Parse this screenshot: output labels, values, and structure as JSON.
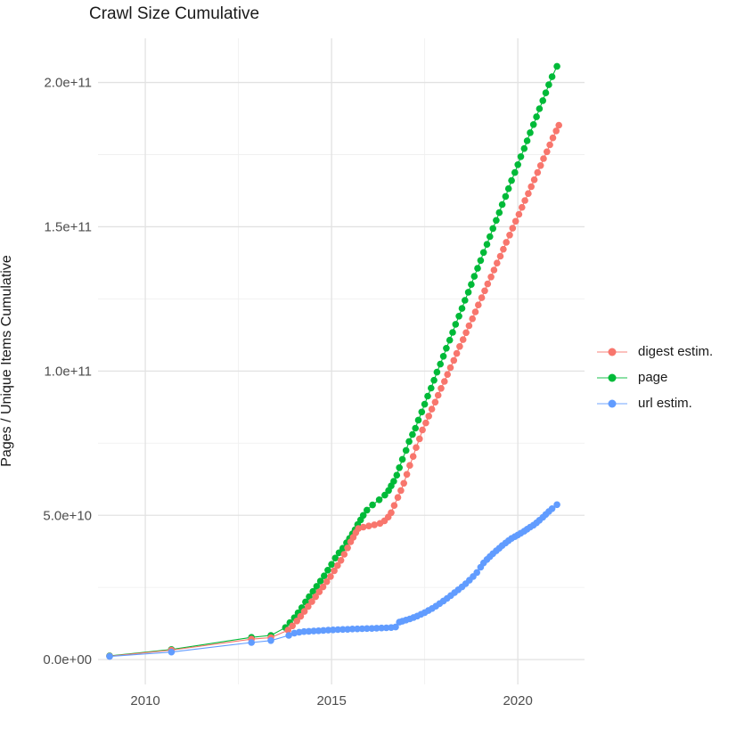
{
  "title": "Crawl Size Cumulative",
  "y_axis_title": "Pages / Unique Items Cumulative",
  "legend": {
    "items": [
      {
        "label": "digest estim.",
        "color": "#F8766D"
      },
      {
        "label": "page",
        "color": "#00BA38"
      },
      {
        "label": "url estim.",
        "color": "#619CFF"
      }
    ]
  },
  "chart_data": {
    "type": "scatter",
    "title": "Crawl Size Cumulative",
    "xlabel": "",
    "ylabel": "Pages / Unique Items Cumulative",
    "x_unit": "year (decimal)",
    "y_unit": "items, stored as value x 1e9",
    "xlim": [
      2008.73,
      2021.79
    ],
    "ylim_e9": [
      -8.6,
      215.3
    ],
    "grid": true,
    "legend_position": "right",
    "x_major_ticks": [
      {
        "label": "2010",
        "value": 2010
      },
      {
        "label": "2015",
        "value": 2015
      },
      {
        "label": "2020",
        "value": 2020
      }
    ],
    "x_minor_ticks": [
      2012.5,
      2017.5
    ],
    "y_major_ticks": [
      {
        "label": "0.0e+00",
        "value_e9": 0
      },
      {
        "label": "5.0e+10",
        "value_e9": 50
      },
      {
        "label": "1.0e+11",
        "value_e9": 100
      },
      {
        "label": "1.5e+11",
        "value_e9": 150
      },
      {
        "label": "2.0e+11",
        "value_e9": 200
      }
    ],
    "y_minor_ticks_e9": [
      25,
      75,
      125,
      175
    ],
    "series": [
      {
        "name": "page",
        "color": "#00BA38",
        "points_year_value_e9": [
          [
            2009.04,
            1.3
          ],
          [
            2010.7,
            3.5
          ],
          [
            2012.85,
            7.7
          ],
          [
            2013.37,
            8.4
          ],
          [
            2013.76,
            11.1
          ],
          [
            2013.88,
            12.8
          ],
          [
            2014.0,
            14.5
          ],
          [
            2014.1,
            16.2
          ],
          [
            2014.2,
            18.0
          ],
          [
            2014.3,
            20.0
          ],
          [
            2014.4,
            21.8
          ],
          [
            2014.5,
            23.6
          ],
          [
            2014.6,
            25.4
          ],
          [
            2014.7,
            27.2
          ],
          [
            2014.8,
            29.0
          ],
          [
            2014.9,
            31.0
          ],
          [
            2015.0,
            33.0
          ],
          [
            2015.1,
            35.2
          ],
          [
            2015.2,
            37.0
          ],
          [
            2015.3,
            38.6
          ],
          [
            2015.4,
            40.5
          ],
          [
            2015.48,
            42.0
          ],
          [
            2015.56,
            43.6
          ],
          [
            2015.63,
            45.0
          ],
          [
            2015.7,
            46.8
          ],
          [
            2015.78,
            48.4
          ],
          [
            2015.85,
            50.0
          ],
          [
            2015.95,
            51.8
          ],
          [
            2016.1,
            53.6
          ],
          [
            2016.28,
            55.4
          ],
          [
            2016.43,
            57.0
          ],
          [
            2016.53,
            58.6
          ],
          [
            2016.6,
            60.2
          ],
          [
            2016.67,
            61.8
          ],
          [
            2016.75,
            63.9
          ],
          [
            2016.82,
            66.5
          ],
          [
            2016.9,
            69.4
          ],
          [
            2017.0,
            72.5
          ],
          [
            2017.08,
            75.6
          ],
          [
            2017.17,
            78.0
          ],
          [
            2017.25,
            80.2
          ],
          [
            2017.33,
            83.0
          ],
          [
            2017.42,
            85.8
          ],
          [
            2017.5,
            88.5
          ],
          [
            2017.58,
            91.3
          ],
          [
            2017.67,
            94.1
          ],
          [
            2017.75,
            96.8
          ],
          [
            2017.83,
            99.6
          ],
          [
            2017.92,
            102.4
          ],
          [
            2018.0,
            105.1
          ],
          [
            2018.08,
            107.9
          ],
          [
            2018.17,
            110.7
          ],
          [
            2018.25,
            113.4
          ],
          [
            2018.33,
            116.2
          ],
          [
            2018.42,
            119.0
          ],
          [
            2018.5,
            121.7
          ],
          [
            2018.58,
            124.5
          ],
          [
            2018.67,
            127.3
          ],
          [
            2018.75,
            130.0
          ],
          [
            2018.83,
            132.8
          ],
          [
            2018.92,
            135.6
          ],
          [
            2019.0,
            138.3
          ],
          [
            2019.08,
            141.1
          ],
          [
            2019.17,
            143.9
          ],
          [
            2019.25,
            146.6
          ],
          [
            2019.33,
            149.4
          ],
          [
            2019.42,
            152.2
          ],
          [
            2019.5,
            154.9
          ],
          [
            2019.58,
            157.7
          ],
          [
            2019.67,
            160.5
          ],
          [
            2019.75,
            163.2
          ],
          [
            2019.83,
            166.0
          ],
          [
            2019.92,
            168.8
          ],
          [
            2020.0,
            171.5
          ],
          [
            2020.08,
            174.3
          ],
          [
            2020.17,
            177.1
          ],
          [
            2020.25,
            179.8
          ],
          [
            2020.33,
            182.6
          ],
          [
            2020.42,
            185.4
          ],
          [
            2020.5,
            188.1
          ],
          [
            2020.58,
            190.9
          ],
          [
            2020.67,
            193.7
          ],
          [
            2020.75,
            196.4
          ],
          [
            2020.83,
            199.2
          ],
          [
            2020.92,
            202.0
          ],
          [
            2021.05,
            205.6
          ]
        ]
      },
      {
        "name": "digest estim.",
        "color": "#F8766D",
        "points_year_value_e9": [
          [
            2009.04,
            1.2
          ],
          [
            2010.7,
            3.3
          ],
          [
            2012.85,
            7.1
          ],
          [
            2013.37,
            7.6
          ],
          [
            2013.83,
            10.2
          ],
          [
            2013.95,
            11.7
          ],
          [
            2014.07,
            13.4
          ],
          [
            2014.17,
            15.0
          ],
          [
            2014.27,
            16.7
          ],
          [
            2014.37,
            18.4
          ],
          [
            2014.47,
            20.1
          ],
          [
            2014.57,
            21.8
          ],
          [
            2014.67,
            23.5
          ],
          [
            2014.77,
            25.2
          ],
          [
            2014.87,
            27.0
          ],
          [
            2014.97,
            28.8
          ],
          [
            2015.07,
            30.8
          ],
          [
            2015.16,
            32.6
          ],
          [
            2015.25,
            34.4
          ],
          [
            2015.34,
            36.5
          ],
          [
            2015.43,
            38.7
          ],
          [
            2015.51,
            40.8
          ],
          [
            2015.58,
            42.4
          ],
          [
            2015.65,
            44.0
          ],
          [
            2015.72,
            45.4
          ],
          [
            2015.85,
            45.9
          ],
          [
            2016.0,
            46.3
          ],
          [
            2016.15,
            46.7
          ],
          [
            2016.3,
            47.2
          ],
          [
            2016.42,
            48.1
          ],
          [
            2016.52,
            49.4
          ],
          [
            2016.6,
            50.9
          ],
          [
            2016.68,
            53.4
          ],
          [
            2016.78,
            56.2
          ],
          [
            2016.86,
            58.6
          ],
          [
            2016.94,
            61.1
          ],
          [
            2017.02,
            64.2
          ],
          [
            2017.1,
            67.3
          ],
          [
            2017.19,
            70.4
          ],
          [
            2017.27,
            73.5
          ],
          [
            2017.36,
            76.5
          ],
          [
            2017.44,
            79.6
          ],
          [
            2017.53,
            82.0
          ],
          [
            2017.61,
            84.4
          ],
          [
            2017.69,
            86.8
          ],
          [
            2017.78,
            89.2
          ],
          [
            2017.86,
            91.6
          ],
          [
            2017.94,
            94.0
          ],
          [
            2018.03,
            96.4
          ],
          [
            2018.11,
            98.8
          ],
          [
            2018.19,
            101.2
          ],
          [
            2018.28,
            103.7
          ],
          [
            2018.36,
            106.1
          ],
          [
            2018.44,
            108.5
          ],
          [
            2018.53,
            110.9
          ],
          [
            2018.61,
            113.3
          ],
          [
            2018.69,
            115.7
          ],
          [
            2018.78,
            118.1
          ],
          [
            2018.86,
            120.5
          ],
          [
            2018.94,
            122.9
          ],
          [
            2019.03,
            125.4
          ],
          [
            2019.11,
            127.8
          ],
          [
            2019.19,
            130.2
          ],
          [
            2019.28,
            132.6
          ],
          [
            2019.36,
            135.0
          ],
          [
            2019.44,
            137.4
          ],
          [
            2019.53,
            139.8
          ],
          [
            2019.61,
            142.2
          ],
          [
            2019.69,
            144.6
          ],
          [
            2019.78,
            147.1
          ],
          [
            2019.86,
            149.5
          ],
          [
            2019.94,
            151.9
          ],
          [
            2020.03,
            154.3
          ],
          [
            2020.11,
            156.7
          ],
          [
            2020.19,
            159.1
          ],
          [
            2020.28,
            161.5
          ],
          [
            2020.36,
            163.9
          ],
          [
            2020.44,
            166.3
          ],
          [
            2020.53,
            168.8
          ],
          [
            2020.61,
            171.2
          ],
          [
            2020.69,
            173.6
          ],
          [
            2020.78,
            176.0
          ],
          [
            2020.86,
            178.4
          ],
          [
            2020.94,
            180.8
          ],
          [
            2021.03,
            183.2
          ],
          [
            2021.1,
            185.2
          ]
        ]
      },
      {
        "name": "url estim.",
        "color": "#619CFF",
        "points_year_value_e9": [
          [
            2009.04,
            1.1
          ],
          [
            2010.7,
            2.6
          ],
          [
            2012.85,
            5.9
          ],
          [
            2013.37,
            6.6
          ],
          [
            2013.85,
            8.4
          ],
          [
            2014.0,
            9.2
          ],
          [
            2014.13,
            9.5
          ],
          [
            2014.26,
            9.7
          ],
          [
            2014.39,
            9.8
          ],
          [
            2014.52,
            9.9
          ],
          [
            2014.65,
            10.0
          ],
          [
            2014.78,
            10.1
          ],
          [
            2014.91,
            10.2
          ],
          [
            2015.04,
            10.3
          ],
          [
            2015.17,
            10.4
          ],
          [
            2015.3,
            10.45
          ],
          [
            2015.43,
            10.5
          ],
          [
            2015.56,
            10.6
          ],
          [
            2015.69,
            10.65
          ],
          [
            2015.82,
            10.7
          ],
          [
            2015.95,
            10.75
          ],
          [
            2016.08,
            10.8
          ],
          [
            2016.21,
            10.9
          ],
          [
            2016.34,
            10.95
          ],
          [
            2016.47,
            11.0
          ],
          [
            2016.6,
            11.1
          ],
          [
            2016.72,
            11.3
          ],
          [
            2016.82,
            13.0
          ],
          [
            2016.9,
            13.3
          ],
          [
            2017.0,
            13.7
          ],
          [
            2017.1,
            14.1
          ],
          [
            2017.2,
            14.6
          ],
          [
            2017.3,
            15.1
          ],
          [
            2017.4,
            15.7
          ],
          [
            2017.5,
            16.3
          ],
          [
            2017.6,
            17.0
          ],
          [
            2017.7,
            17.7
          ],
          [
            2017.8,
            18.5
          ],
          [
            2017.9,
            19.4
          ],
          [
            2018.0,
            20.3
          ],
          [
            2018.1,
            21.2
          ],
          [
            2018.2,
            22.2
          ],
          [
            2018.3,
            23.2
          ],
          [
            2018.4,
            24.2
          ],
          [
            2018.5,
            25.2
          ],
          [
            2018.6,
            26.3
          ],
          [
            2018.7,
            27.5
          ],
          [
            2018.8,
            28.8
          ],
          [
            2018.9,
            30.2
          ],
          [
            2019.0,
            32.0
          ],
          [
            2019.08,
            33.5
          ],
          [
            2019.17,
            34.7
          ],
          [
            2019.25,
            35.7
          ],
          [
            2019.33,
            36.7
          ],
          [
            2019.42,
            37.7
          ],
          [
            2019.5,
            38.6
          ],
          [
            2019.58,
            39.5
          ],
          [
            2019.67,
            40.4
          ],
          [
            2019.75,
            41.2
          ],
          [
            2019.83,
            42.0
          ],
          [
            2019.92,
            42.6
          ],
          [
            2020.0,
            43.2
          ],
          [
            2020.08,
            43.8
          ],
          [
            2020.17,
            44.5
          ],
          [
            2020.25,
            45.2
          ],
          [
            2020.33,
            45.9
          ],
          [
            2020.42,
            46.6
          ],
          [
            2020.5,
            47.4
          ],
          [
            2020.58,
            48.3
          ],
          [
            2020.67,
            49.3
          ],
          [
            2020.75,
            50.3
          ],
          [
            2020.83,
            51.3
          ],
          [
            2020.92,
            52.3
          ],
          [
            2021.05,
            53.7
          ]
        ]
      }
    ]
  }
}
